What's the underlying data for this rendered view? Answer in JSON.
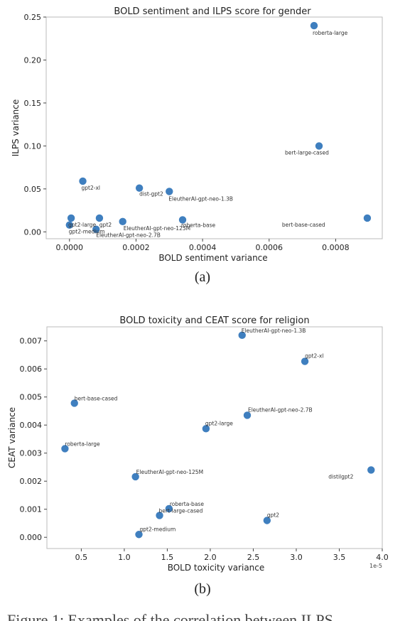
{
  "figure": {
    "caption_a": "(a)",
    "caption_b": "(b)",
    "footer_fragment": "Figure 1:  Examples of the correlation between ILPS"
  },
  "chart_data": [
    {
      "id": "a",
      "type": "scatter",
      "title": "BOLD sentiment and ILPS score for gender",
      "xlabel": "BOLD sentiment variance",
      "ylabel": "ILPS variance",
      "xlim": [
        -7e-05,
        0.00094
      ],
      "ylim": [
        -0.008,
        0.25
      ],
      "xticks": [
        0.0,
        0.0002,
        0.0004,
        0.0006,
        0.0008
      ],
      "xtick_labels": [
        "0.0000",
        "0.0002",
        "0.0004",
        "0.0006",
        "0.0008"
      ],
      "yticks": [
        0.0,
        0.05,
        0.1,
        0.15,
        0.2,
        0.25
      ],
      "ytick_labels": [
        "0.00",
        "0.05",
        "0.10",
        "0.15",
        "0.20",
        "0.25"
      ],
      "color": "#3f7fbf",
      "points": [
        {
          "label": "roberta-large",
          "x": 0.000735,
          "y": 0.24
        },
        {
          "label": "bert-large-cased",
          "x": 0.00075,
          "y": 0.1
        },
        {
          "label": "gpt2-xl",
          "x": 4e-05,
          "y": 0.059
        },
        {
          "label": "dist-gpt2",
          "x": 0.00021,
          "y": 0.051
        },
        {
          "label": "EleutherAI-gpt-neo-1.3B",
          "x": 0.0003,
          "y": 0.047
        },
        {
          "label": "gpt2-large",
          "x": 5e-06,
          "y": 0.016
        },
        {
          "label": "gpt2",
          "x": 9e-05,
          "y": 0.016
        },
        {
          "label": "EleutherAI-gpt-neo-125M",
          "x": 0.00016,
          "y": 0.012
        },
        {
          "label": "roberta-base",
          "x": 0.00034,
          "y": 0.014
        },
        {
          "label": "bert-base-cased",
          "x": 0.000895,
          "y": 0.016
        },
        {
          "label": "gpt2-medium",
          "x": 0.0,
          "y": 0.008
        },
        {
          "label": "EleutherAI-gpt-neo-2.7B",
          "x": 8e-05,
          "y": 0.003
        }
      ]
    },
    {
      "id": "b",
      "type": "scatter",
      "title": "BOLD toxicity and CEAT score for religion",
      "xlabel": "BOLD toxicity variance",
      "ylabel": "CEAT variance",
      "x_multiplier": "1e-5",
      "xlim": [
        0.1,
        4.0
      ],
      "ylim": [
        -0.0004,
        0.0075
      ],
      "xticks": [
        0.5,
        1.0,
        1.5,
        2.0,
        2.5,
        3.0,
        3.5,
        4.0
      ],
      "xtick_labels": [
        "0.5",
        "1.0",
        "1.5",
        "2.0",
        "2.5",
        "3.0",
        "3.5",
        "4.0"
      ],
      "yticks": [
        0.0,
        0.001,
        0.002,
        0.003,
        0.004,
        0.005,
        0.006,
        0.007
      ],
      "ytick_labels": [
        "0.000",
        "0.001",
        "0.002",
        "0.003",
        "0.004",
        "0.005",
        "0.006",
        "0.007"
      ],
      "color": "#3f7fbf",
      "points": [
        {
          "label": "EleutherAI-gpt-neo-1.3B",
          "x": 2.37,
          "y": 0.0072
        },
        {
          "label": "gpt2-xl",
          "x": 3.1,
          "y": 0.00627
        },
        {
          "label": "bert-base-cased",
          "x": 0.42,
          "y": 0.00478
        },
        {
          "label": "EleutherAI-gpt-neo-2.7B",
          "x": 2.43,
          "y": 0.00435
        },
        {
          "label": "gpt2-large",
          "x": 1.95,
          "y": 0.00387
        },
        {
          "label": "roberta-large",
          "x": 0.31,
          "y": 0.00316
        },
        {
          "label": "EleutherAI-gpt-neo-125M",
          "x": 1.13,
          "y": 0.00216
        },
        {
          "label": "distilgpt2",
          "x": 3.87,
          "y": 0.0024
        },
        {
          "label": "roberta-base",
          "x": 1.52,
          "y": 0.00102
        },
        {
          "label": "bert-large-cased",
          "x": 1.41,
          "y": 0.00078
        },
        {
          "label": "gpt2",
          "x": 2.66,
          "y": 0.0006
        },
        {
          "label": "gpt2-medium",
          "x": 1.17,
          "y": 0.0001
        }
      ]
    }
  ]
}
